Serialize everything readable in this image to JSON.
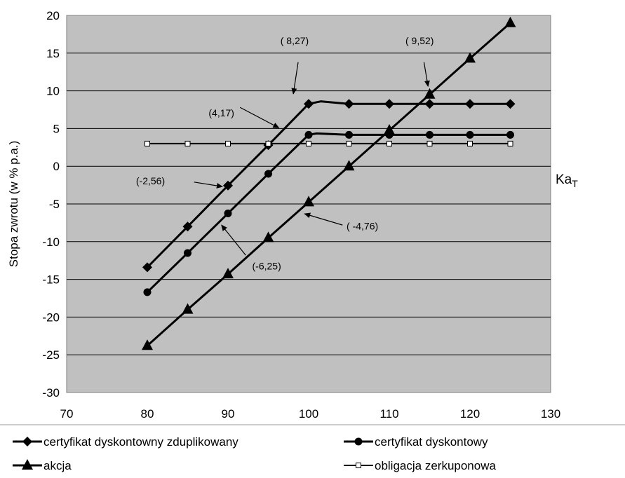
{
  "chart_data": {
    "type": "line",
    "ylabel": "Stopa zwrotu (w % p.a.)",
    "xlabel_main": "Ka",
    "xlabel_sub": "T",
    "xlim": [
      70,
      130
    ],
    "ylim": [
      -30,
      20
    ],
    "x_ticks": [
      "70",
      "80",
      "90",
      "100",
      "110",
      "120",
      "130"
    ],
    "y_ticks": [
      "20",
      "15",
      "10",
      "5",
      "0",
      "-5",
      "-10",
      "-15",
      "-20",
      "-25",
      "-30"
    ],
    "grid": true,
    "legend_position": "bottom",
    "series": [
      {
        "name": "certyfikat dyskontowny zduplikowany",
        "marker": "diamond",
        "line": [
          [
            80,
            -13.4
          ],
          [
            85,
            -8
          ],
          [
            90,
            -2.56
          ],
          [
            95,
            2.8
          ],
          [
            100,
            8.27
          ],
          [
            101.5,
            8.6
          ],
          [
            105,
            8.27
          ],
          [
            125,
            8.27
          ]
        ],
        "points": [
          [
            80,
            -13.4
          ],
          [
            85,
            -8
          ],
          [
            90,
            -2.56
          ],
          [
            95,
            2.8
          ],
          [
            100,
            8.27
          ],
          [
            105,
            8.27
          ],
          [
            110,
            8.27
          ],
          [
            115,
            8.27
          ],
          [
            120,
            8.27
          ],
          [
            125,
            8.27
          ]
        ]
      },
      {
        "name": "certyfikat dyskontowy",
        "marker": "circle",
        "line": [
          [
            80,
            -16.7
          ],
          [
            85,
            -11.5
          ],
          [
            90,
            -6.25
          ],
          [
            95,
            -1
          ],
          [
            100,
            4.17
          ],
          [
            101,
            4.35
          ],
          [
            105,
            4.17
          ],
          [
            125,
            4.17
          ]
        ],
        "points": [
          [
            80,
            -16.7
          ],
          [
            85,
            -11.5
          ],
          [
            90,
            -6.25
          ],
          [
            95,
            -1
          ],
          [
            100,
            4.17
          ],
          [
            105,
            4.17
          ],
          [
            110,
            4.17
          ],
          [
            115,
            4.17
          ],
          [
            120,
            4.17
          ],
          [
            125,
            4.17
          ]
        ]
      },
      {
        "name": "akcja",
        "marker": "triangle",
        "line": [
          [
            80,
            -23.8
          ],
          [
            85,
            -19
          ],
          [
            90,
            -14.3
          ],
          [
            95,
            -9.5
          ],
          [
            100,
            -4.76
          ],
          [
            105,
            0
          ],
          [
            110,
            4.76
          ],
          [
            115,
            9.52
          ],
          [
            120,
            14.3
          ],
          [
            125,
            19
          ]
        ],
        "points": [
          [
            80,
            -23.8
          ],
          [
            85,
            -19
          ],
          [
            90,
            -14.3
          ],
          [
            95,
            -9.5
          ],
          [
            100,
            -4.76
          ],
          [
            105,
            0
          ],
          [
            110,
            4.76
          ],
          [
            115,
            9.52
          ],
          [
            120,
            14.3
          ],
          [
            125,
            19
          ]
        ]
      },
      {
        "name": "obligacja zerkuponowa",
        "marker": "square",
        "line": [
          [
            80,
            3
          ],
          [
            125,
            3
          ]
        ],
        "points": [
          [
            80,
            3
          ],
          [
            85,
            3
          ],
          [
            90,
            3
          ],
          [
            95,
            3
          ],
          [
            100,
            3
          ],
          [
            105,
            3
          ],
          [
            110,
            3
          ],
          [
            115,
            3
          ],
          [
            120,
            3
          ],
          [
            125,
            3
          ]
        ]
      }
    ],
    "annotations": [
      {
        "text": "( 8,27)",
        "tx": 96.5,
        "ty": 16.2,
        "ax1": 98.7,
        "ay1": 13.8,
        "ax2": 98.1,
        "ay2": 9.6
      },
      {
        "text": "( 9,52)",
        "tx": 112,
        "ty": 16.2,
        "ax1": 114.3,
        "ay1": 13.8,
        "ax2": 114.8,
        "ay2": 10.6
      },
      {
        "text": "(4,17)",
        "tx": 87.6,
        "ty": 6.6,
        "ax1": 91.5,
        "ay1": 7.8,
        "ax2": 96.3,
        "ay2": 5.1
      },
      {
        "text": "(-2,56)",
        "tx": 78.6,
        "ty": -2.4,
        "ax1": 85.8,
        "ay1": -2.1,
        "ax2": 89.3,
        "ay2": -2.7
      },
      {
        "text": "( -4,76)",
        "tx": 104.7,
        "ty": -8.4,
        "ax1": 104.2,
        "ay1": -7.8,
        "ax2": 99.5,
        "ay2": -6.3
      },
      {
        "text": "(-6,25)",
        "tx": 93,
        "ty": -13.7,
        "ax1": 92.2,
        "ay1": -11.8,
        "ax2": 89.2,
        "ay2": -7.8
      }
    ]
  }
}
